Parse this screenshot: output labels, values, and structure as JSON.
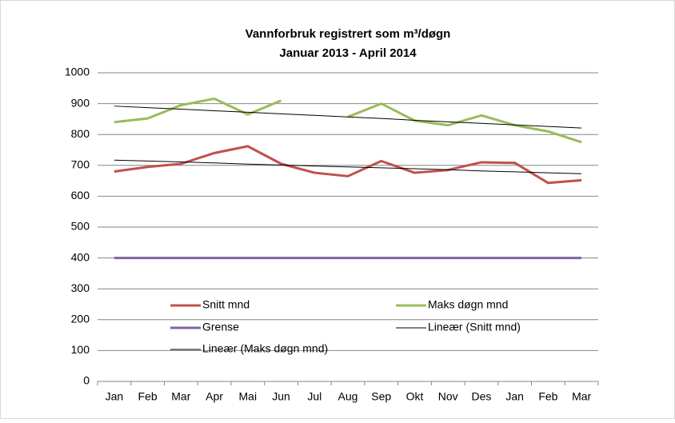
{
  "chart_data": {
    "type": "line",
    "title": "Vannforbruk registrert som m³/døgn",
    "subtitle": "Januar 2013 - April 2014",
    "categories": [
      "Jan",
      "Feb",
      "Mar",
      "Apr",
      "Mai",
      "Jun",
      "Jul",
      "Aug",
      "Sep",
      "Okt",
      "Nov",
      "Des",
      "Jan",
      "Feb",
      "Mar"
    ],
    "series": [
      {
        "name": "Snitt mnd",
        "color": "#c0504d",
        "width": 3,
        "values": [
          680,
          695,
          705,
          740,
          762,
          705,
          676,
          665,
          714,
          676,
          685,
          710,
          708,
          643,
          652
        ]
      },
      {
        "name": "Maks døgn mnd",
        "color": "#9bbb59",
        "width": 3,
        "values": [
          840,
          852,
          895,
          916,
          865,
          910,
          null,
          857,
          900,
          845,
          830,
          862,
          830,
          810,
          775
        ]
      },
      {
        "name": "Grense",
        "color": "#8064a2",
        "width": 3,
        "values": [
          400,
          400,
          400,
          400,
          400,
          400,
          400,
          400,
          400,
          400,
          400,
          400,
          400,
          400,
          400
        ]
      },
      {
        "name": "Lineær (Snitt mnd)",
        "color": "#000000",
        "width": 1,
        "values": [
          717,
          714,
          711,
          708,
          704,
          701,
          698,
          695,
          692,
          689,
          686,
          682,
          679,
          676,
          673
        ]
      },
      {
        "name": "Lineær (Maks døgn mnd)",
        "color": "#000000",
        "width": 1,
        "values": [
          892,
          887,
          882,
          877,
          872,
          867,
          862,
          857,
          852,
          846,
          841,
          836,
          831,
          826,
          821
        ]
      }
    ],
    "ylim": [
      0,
      1000
    ],
    "yticks": [
      0,
      100,
      200,
      300,
      400,
      500,
      600,
      700,
      800,
      900,
      1000
    ],
    "grid": true
  }
}
